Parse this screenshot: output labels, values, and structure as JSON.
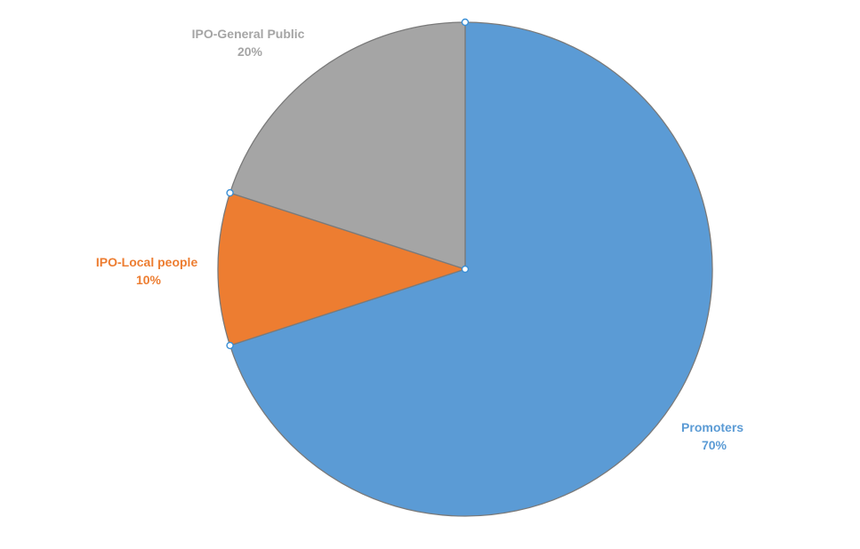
{
  "chart_data": {
    "type": "pie",
    "title": "",
    "slices": [
      {
        "label": "Promoters",
        "value": 70,
        "percent_label": "70%",
        "color": "#5b9bd5"
      },
      {
        "label": "IPO-Local people",
        "value": 10,
        "percent_label": "10%",
        "color": "#ed7d31"
      },
      {
        "label": "IPO-General Public",
        "value": 20,
        "percent_label": "20%",
        "color": "#a5a5a5"
      }
    ],
    "start_angle_deg": 0,
    "direction": "clockwise",
    "legend": "none",
    "data_labels": "outside-end",
    "selected": true
  }
}
